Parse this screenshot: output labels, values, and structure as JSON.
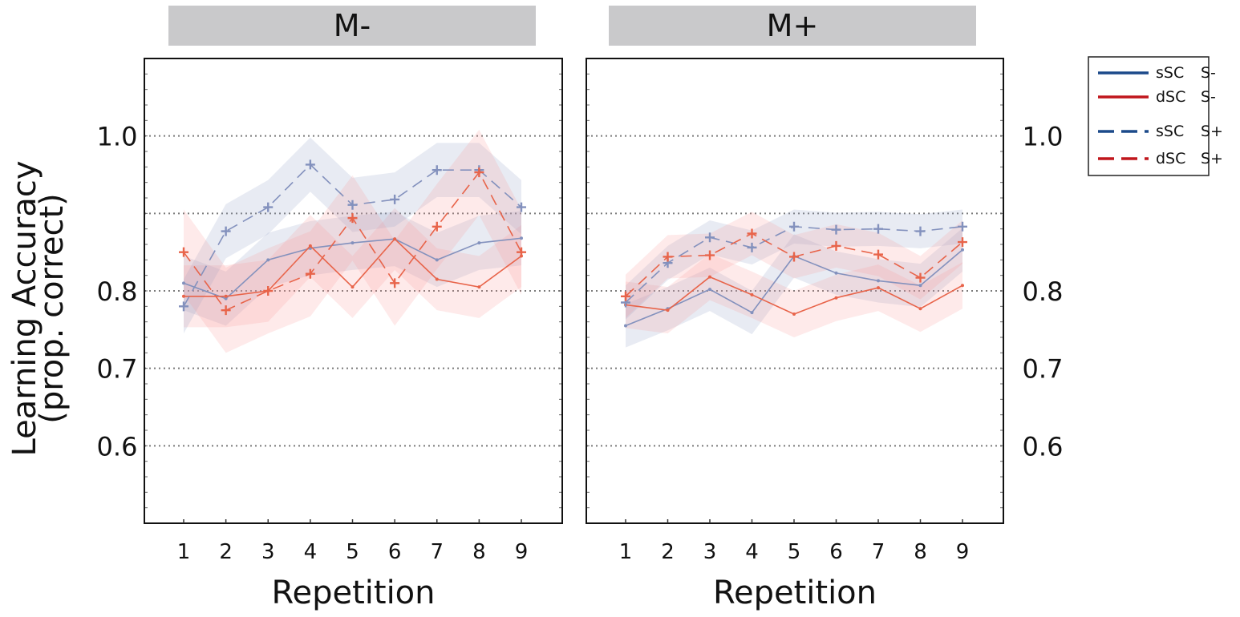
{
  "chart_data": {
    "type": "line",
    "ylabel_line1": "Learning Accuracy",
    "ylabel_line2": "(prop. correct)",
    "xlabel": "Repetition",
    "ylim": [
      0.5,
      1.1
    ],
    "yticks": [
      0.6,
      0.7,
      0.8,
      1.0
    ],
    "ytick_labels": [
      "0.6",
      "0.7",
      "0.8",
      "1.0"
    ],
    "ygrid": [
      0.6,
      0.7,
      0.8,
      0.9,
      1.0,
      1.1
    ],
    "x": [
      1,
      2,
      3,
      4,
      5,
      6,
      7,
      8,
      9
    ],
    "legend": [
      {
        "key": "ssc_sminus",
        "label": "sSC",
        "sub": "S-",
        "color": "#1c4a8a",
        "dash": false
      },
      {
        "key": "dsc_sminus",
        "label": "dSC",
        "sub": "S-",
        "color": "#c0161c",
        "dash": false
      },
      {
        "key": "ssc_splus",
        "label": "sSC",
        "sub": "S+",
        "color": "#1c4a8a",
        "dash": true
      },
      {
        "key": "dsc_splus",
        "label": "dSC",
        "sub": "S+",
        "color": "#c0161c",
        "dash": true
      }
    ],
    "panels": [
      {
        "title": "M-",
        "series": [
          {
            "key": "ssc_sminus",
            "values": [
              0.81,
              0.79,
              0.84,
              0.855,
              0.862,
              0.867,
              0.84,
              0.862,
              0.868
            ],
            "ci": 0.035
          },
          {
            "key": "dsc_sminus",
            "values": [
              0.793,
              0.793,
              0.8,
              0.858,
              0.805,
              0.867,
              0.815,
              0.805,
              0.845
            ],
            "ci": 0.04
          },
          {
            "key": "ssc_splus",
            "values": [
              0.78,
              0.877,
              0.908,
              0.963,
              0.911,
              0.918,
              0.956,
              0.956,
              0.908
            ],
            "ci": 0.035
          },
          {
            "key": "dsc_splus",
            "values": [
              0.85,
              0.775,
              0.8,
              0.822,
              0.894,
              0.81,
              0.883,
              0.953,
              0.85
            ],
            "ci": 0.055
          }
        ]
      },
      {
        "title": "M+",
        "series": [
          {
            "key": "ssc_sminus",
            "values": [
              0.755,
              0.777,
              0.802,
              0.772,
              0.845,
              0.823,
              0.813,
              0.807,
              0.853
            ],
            "ci": 0.028
          },
          {
            "key": "dsc_sminus",
            "values": [
              0.782,
              0.775,
              0.818,
              0.795,
              0.77,
              0.791,
              0.804,
              0.777,
              0.807
            ],
            "ci": 0.03
          },
          {
            "key": "ssc_splus",
            "values": [
              0.785,
              0.836,
              0.869,
              0.856,
              0.883,
              0.879,
              0.88,
              0.877,
              0.883
            ],
            "ci": 0.022
          },
          {
            "key": "dsc_splus",
            "values": [
              0.793,
              0.844,
              0.846,
              0.874,
              0.844,
              0.858,
              0.847,
              0.817,
              0.863
            ],
            "ci": 0.028
          }
        ]
      }
    ]
  }
}
